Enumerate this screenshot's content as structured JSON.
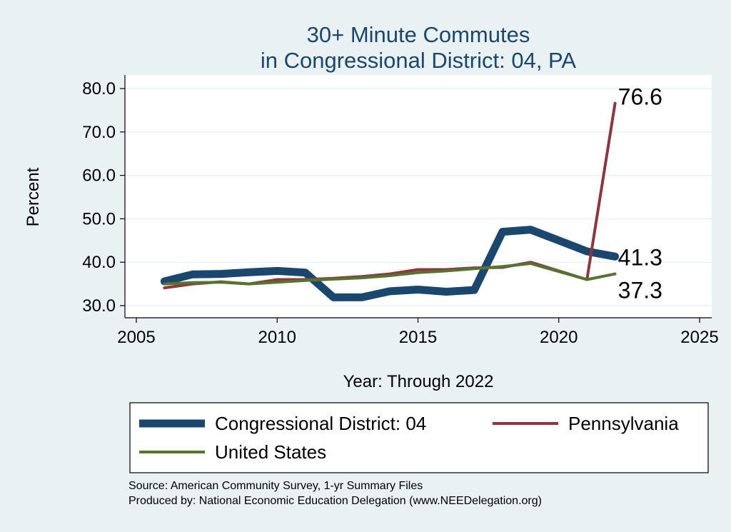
{
  "chart_data": {
    "type": "line",
    "title": [
      "30+ Minute Commutes",
      "in Congressional District:  04, PA"
    ],
    "xlabel": "Year: Through 2022",
    "ylabel": "Percent",
    "xlim": [
      2005,
      2025
    ],
    "ylim": [
      30,
      80
    ],
    "x_ticks": [
      "2005",
      "2010",
      "2015",
      "2020",
      "2025"
    ],
    "y_ticks": [
      "30.0",
      "40.0",
      "50.0",
      "60.0",
      "70.0",
      "80.0"
    ],
    "x": [
      2006,
      2007,
      2008,
      2009,
      2010,
      2011,
      2012,
      2013,
      2014,
      2015,
      2016,
      2017,
      2018,
      2019,
      2020,
      2021,
      2022
    ],
    "series": [
      {
        "name": "Congressional District:  04",
        "color": "#1a476f",
        "values": [
          35.6,
          37.2,
          37.3,
          37.7,
          38.0,
          37.6,
          31.9,
          31.9,
          33.3,
          33.7,
          33.2,
          33.6,
          47.0,
          47.5,
          45.0,
          42.5,
          41.3
        ],
        "end_label": "41.3"
      },
      {
        "name": "Pennsylvania",
        "color": "#90353b",
        "values": [
          34.1,
          35.0,
          35.5,
          35.0,
          36.0,
          36.0,
          36.3,
          36.7,
          37.3,
          38.3,
          38.3,
          38.7,
          38.8,
          40.0,
          null,
          36.0,
          76.6
        ],
        "end_label": "76.6"
      },
      {
        "name": "United States",
        "color": "#55752f",
        "values": [
          35.0,
          35.3,
          35.4,
          35.0,
          35.4,
          35.8,
          36.1,
          36.4,
          36.9,
          37.6,
          38.0,
          38.5,
          39.0,
          39.7,
          null,
          36.0,
          37.3
        ],
        "end_label": "37.3"
      }
    ],
    "legend": {
      "position": "bottom",
      "entries": [
        "Congressional District:  04",
        "Pennsylvania",
        "United States"
      ]
    },
    "source": [
      "Source: American Community Survey, 1-yr Summary Files",
      "Produced by: National Economic Education Delegation (www.NEEDelegation.org)"
    ]
  }
}
